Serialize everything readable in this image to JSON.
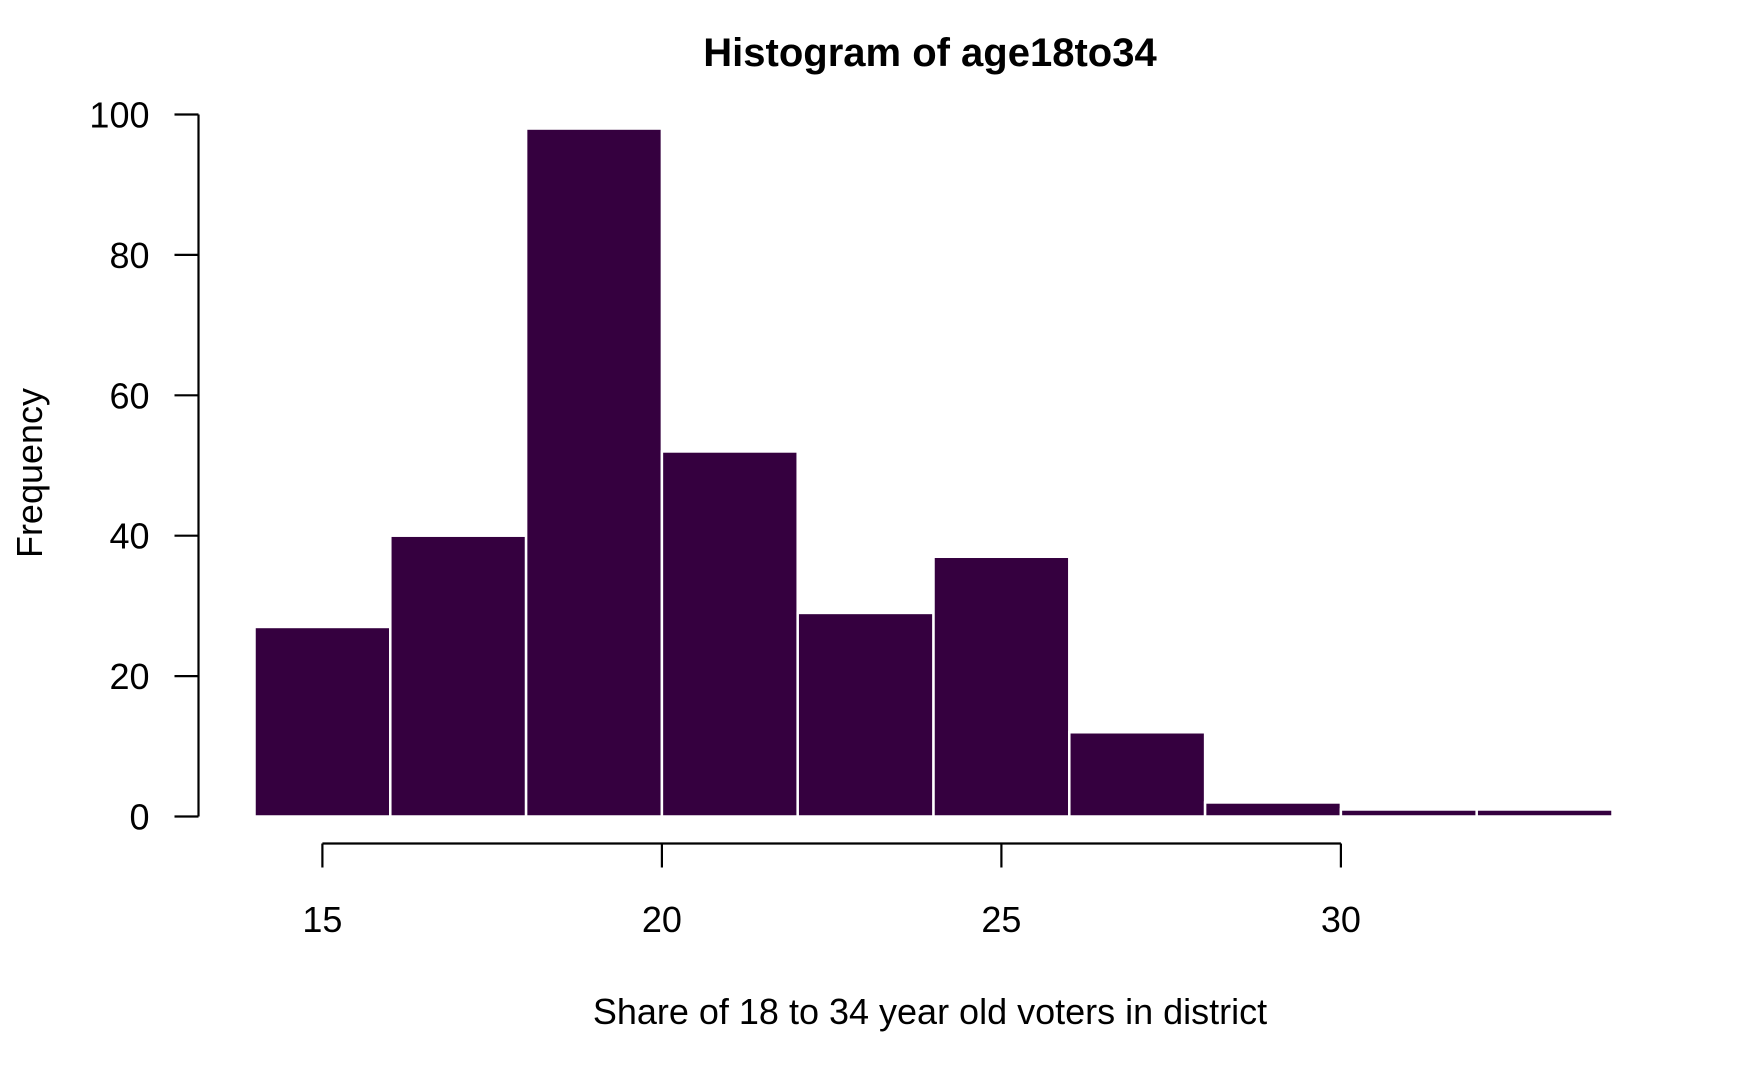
{
  "chart_data": {
    "type": "bar",
    "title": "Histogram of age18to34",
    "xlabel": "Share of 18 to 34 year old voters in district",
    "ylabel": "Frequency",
    "bins": [
      {
        "x0": 14,
        "x1": 16,
        "count": 27
      },
      {
        "x0": 16,
        "x1": 18,
        "count": 40
      },
      {
        "x0": 18,
        "x1": 20,
        "count": 98
      },
      {
        "x0": 20,
        "x1": 22,
        "count": 52
      },
      {
        "x0": 22,
        "x1": 24,
        "count": 29
      },
      {
        "x0": 24,
        "x1": 26,
        "count": 37
      },
      {
        "x0": 26,
        "x1": 28,
        "count": 12
      },
      {
        "x0": 28,
        "x1": 30,
        "count": 2
      },
      {
        "x0": 30,
        "x1": 32,
        "count": 1
      },
      {
        "x0": 32,
        "x1": 34,
        "count": 1
      }
    ],
    "xlim": [
      14,
      34
    ],
    "ylim": [
      0,
      100
    ],
    "x_ticks": [
      15,
      20,
      25,
      30
    ],
    "y_ticks": [
      0,
      20,
      40,
      60,
      80,
      100
    ],
    "bar_color": "#35003f",
    "bar_border_color": "#ffffff",
    "grid": false,
    "legend": false
  }
}
